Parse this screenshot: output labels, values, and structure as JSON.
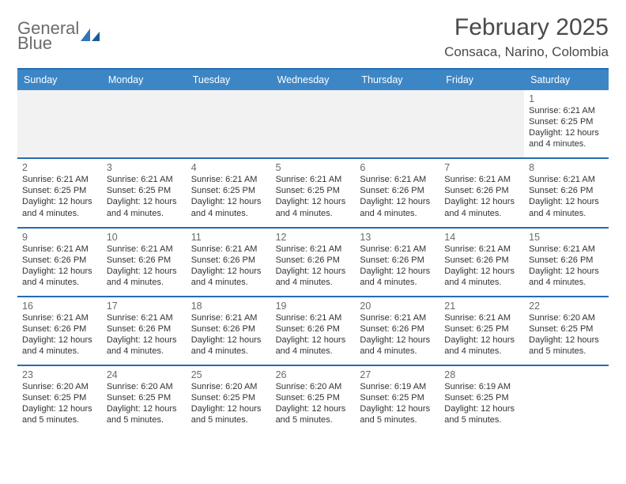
{
  "logo": {
    "text_top": "General",
    "text_bottom": "Blue",
    "gray_color": "#6b6b6b",
    "blue_color": "#2f77b9"
  },
  "header": {
    "title": "February 2025",
    "subtitle": "Consaca, Narino, Colombia"
  },
  "styling": {
    "header_bar_color": "#3d86c6",
    "rule_color": "#246db3",
    "weekday_text_color": "#ffffff",
    "page_bg": "#ffffff",
    "spacer_bg": "#f2f2f2",
    "body_font_size": 11,
    "daynum_color": "#6a6a6a",
    "text_color": "#333333"
  },
  "weekdays": [
    "Sunday",
    "Monday",
    "Tuesday",
    "Wednesday",
    "Thursday",
    "Friday",
    "Saturday"
  ],
  "weeks": [
    [
      null,
      null,
      null,
      null,
      null,
      null,
      {
        "n": "1",
        "sunrise": "6:21 AM",
        "sunset": "6:25 PM",
        "daylight": "12 hours and 4 minutes."
      }
    ],
    [
      {
        "n": "2",
        "sunrise": "6:21 AM",
        "sunset": "6:25 PM",
        "daylight": "12 hours and 4 minutes."
      },
      {
        "n": "3",
        "sunrise": "6:21 AM",
        "sunset": "6:25 PM",
        "daylight": "12 hours and 4 minutes."
      },
      {
        "n": "4",
        "sunrise": "6:21 AM",
        "sunset": "6:25 PM",
        "daylight": "12 hours and 4 minutes."
      },
      {
        "n": "5",
        "sunrise": "6:21 AM",
        "sunset": "6:25 PM",
        "daylight": "12 hours and 4 minutes."
      },
      {
        "n": "6",
        "sunrise": "6:21 AM",
        "sunset": "6:26 PM",
        "daylight": "12 hours and 4 minutes."
      },
      {
        "n": "7",
        "sunrise": "6:21 AM",
        "sunset": "6:26 PM",
        "daylight": "12 hours and 4 minutes."
      },
      {
        "n": "8",
        "sunrise": "6:21 AM",
        "sunset": "6:26 PM",
        "daylight": "12 hours and 4 minutes."
      }
    ],
    [
      {
        "n": "9",
        "sunrise": "6:21 AM",
        "sunset": "6:26 PM",
        "daylight": "12 hours and 4 minutes."
      },
      {
        "n": "10",
        "sunrise": "6:21 AM",
        "sunset": "6:26 PM",
        "daylight": "12 hours and 4 minutes."
      },
      {
        "n": "11",
        "sunrise": "6:21 AM",
        "sunset": "6:26 PM",
        "daylight": "12 hours and 4 minutes."
      },
      {
        "n": "12",
        "sunrise": "6:21 AM",
        "sunset": "6:26 PM",
        "daylight": "12 hours and 4 minutes."
      },
      {
        "n": "13",
        "sunrise": "6:21 AM",
        "sunset": "6:26 PM",
        "daylight": "12 hours and 4 minutes."
      },
      {
        "n": "14",
        "sunrise": "6:21 AM",
        "sunset": "6:26 PM",
        "daylight": "12 hours and 4 minutes."
      },
      {
        "n": "15",
        "sunrise": "6:21 AM",
        "sunset": "6:26 PM",
        "daylight": "12 hours and 4 minutes."
      }
    ],
    [
      {
        "n": "16",
        "sunrise": "6:21 AM",
        "sunset": "6:26 PM",
        "daylight": "12 hours and 4 minutes."
      },
      {
        "n": "17",
        "sunrise": "6:21 AM",
        "sunset": "6:26 PM",
        "daylight": "12 hours and 4 minutes."
      },
      {
        "n": "18",
        "sunrise": "6:21 AM",
        "sunset": "6:26 PM",
        "daylight": "12 hours and 4 minutes."
      },
      {
        "n": "19",
        "sunrise": "6:21 AM",
        "sunset": "6:26 PM",
        "daylight": "12 hours and 4 minutes."
      },
      {
        "n": "20",
        "sunrise": "6:21 AM",
        "sunset": "6:26 PM",
        "daylight": "12 hours and 4 minutes."
      },
      {
        "n": "21",
        "sunrise": "6:21 AM",
        "sunset": "6:25 PM",
        "daylight": "12 hours and 4 minutes."
      },
      {
        "n": "22",
        "sunrise": "6:20 AM",
        "sunset": "6:25 PM",
        "daylight": "12 hours and 5 minutes."
      }
    ],
    [
      {
        "n": "23",
        "sunrise": "6:20 AM",
        "sunset": "6:25 PM",
        "daylight": "12 hours and 5 minutes."
      },
      {
        "n": "24",
        "sunrise": "6:20 AM",
        "sunset": "6:25 PM",
        "daylight": "12 hours and 5 minutes."
      },
      {
        "n": "25",
        "sunrise": "6:20 AM",
        "sunset": "6:25 PM",
        "daylight": "12 hours and 5 minutes."
      },
      {
        "n": "26",
        "sunrise": "6:20 AM",
        "sunset": "6:25 PM",
        "daylight": "12 hours and 5 minutes."
      },
      {
        "n": "27",
        "sunrise": "6:19 AM",
        "sunset": "6:25 PM",
        "daylight": "12 hours and 5 minutes."
      },
      {
        "n": "28",
        "sunrise": "6:19 AM",
        "sunset": "6:25 PM",
        "daylight": "12 hours and 5 minutes."
      },
      null
    ]
  ],
  "labels": {
    "sunrise": "Sunrise:",
    "sunset": "Sunset:",
    "daylight": "Daylight:"
  }
}
